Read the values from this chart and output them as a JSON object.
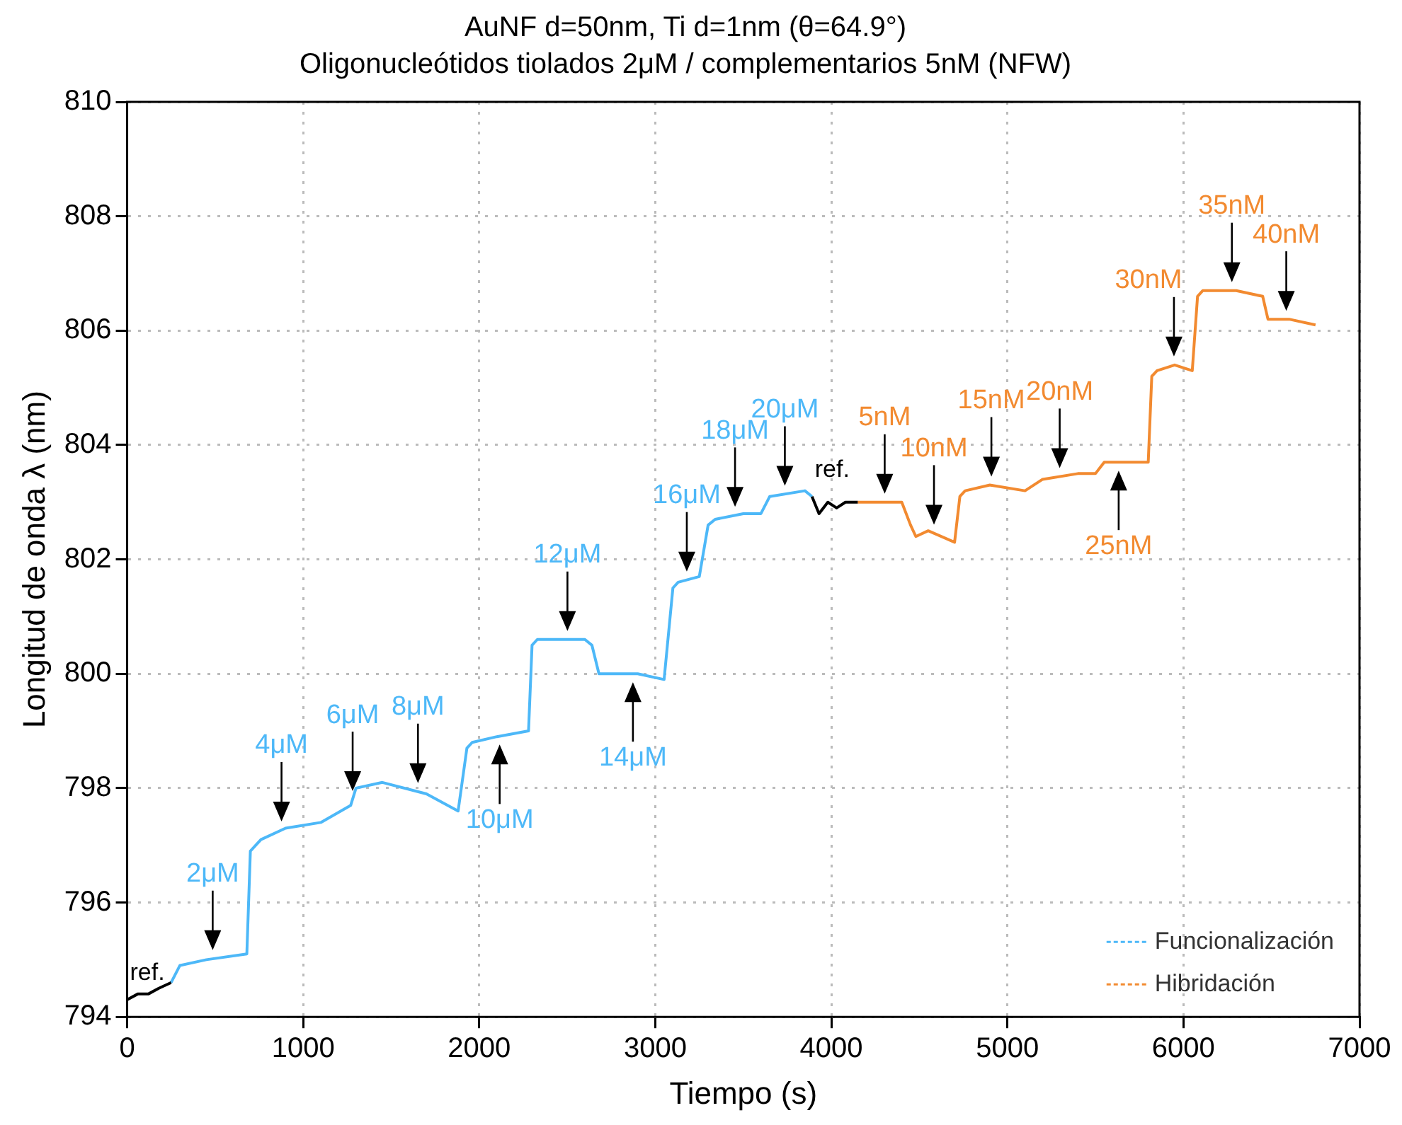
{
  "chart_data": {
    "type": "line",
    "title": "AuNF d=50nm, Ti d=1nm (θ=64.9°)",
    "subtitle": "Oligonucleótidos tiolados 2μM / complementarios 5nM (NFW)",
    "xlabel": "Tiempo (s)",
    "ylabel": "Longitud de onda λ (nm)",
    "xlim": [
      0,
      7000
    ],
    "xticks": [
      0,
      1000,
      2000,
      3000,
      4000,
      5000,
      6000,
      7000
    ],
    "ylim": [
      794,
      810
    ],
    "yticks": [
      794,
      796,
      798,
      800,
      802,
      804,
      806,
      808,
      810
    ],
    "grid": true,
    "legend": "bottom right",
    "line_style": "solid",
    "marker": "none",
    "series": [
      {
        "name": "ref.",
        "color": "#000000",
        "x": [
          0,
          60,
          120,
          180,
          250,
          255,
          3890,
          3930,
          3980,
          4030,
          4080,
          4150
        ],
        "values": [
          794.3,
          794.4,
          794.4,
          794.5,
          794.6,
          null,
          803.1,
          802.8,
          803.0,
          802.9,
          803.0,
          803.0
        ]
      },
      {
        "name": "Funcionalización",
        "color": "#4db8f8",
        "x": [
          250,
          300,
          450,
          680,
          700,
          760,
          900,
          1100,
          1270,
          1300,
          1450,
          1700,
          1880,
          1930,
          1960,
          2100,
          2280,
          2300,
          2330,
          2600,
          2640,
          2680,
          2900,
          3050,
          3100,
          3130,
          3250,
          3300,
          3340,
          3500,
          3600,
          3650,
          3850,
          3890
        ],
        "values": [
          794.6,
          794.9,
          795.0,
          795.1,
          796.9,
          797.1,
          797.3,
          797.4,
          797.7,
          798.0,
          798.1,
          797.9,
          797.6,
          798.7,
          798.8,
          798.9,
          799.0,
          800.5,
          800.6,
          800.6,
          800.5,
          800.0,
          800.0,
          799.9,
          801.5,
          801.6,
          801.7,
          802.6,
          802.7,
          802.8,
          802.8,
          803.1,
          803.2,
          803.1
        ]
      },
      {
        "name": "Hibridación",
        "color": "#f28a30",
        "x": [
          4150,
          4400,
          4450,
          4480,
          4550,
          4700,
          4730,
          4760,
          4900,
          5100,
          5200,
          5400,
          5500,
          5550,
          5800,
          5820,
          5850,
          5950,
          6050,
          6080,
          6110,
          6300,
          6450,
          6480,
          6600,
          6750
        ],
        "values": [
          803.0,
          803.0,
          802.6,
          802.4,
          802.5,
          802.3,
          803.1,
          803.2,
          803.3,
          803.2,
          803.4,
          803.5,
          803.5,
          803.7,
          803.7,
          805.2,
          805.3,
          805.4,
          805.3,
          806.6,
          806.7,
          806.7,
          806.6,
          806.2,
          806.2,
          806.1
        ]
      }
    ],
    "annotations": [
      {
        "text": "2μM",
        "x": 486,
        "y": 795.02
      },
      {
        "text": "4μM",
        "x": 877,
        "y": 797.27
      },
      {
        "text": "6μM",
        "x": 1281,
        "y": 797.8
      },
      {
        "text": "8μM",
        "x": 1652,
        "y": 797.94
      },
      {
        "text": "10μM",
        "x": 2116,
        "y": 798.91
      },
      {
        "text": "12μM",
        "x": 2501,
        "y": 800.6
      },
      {
        "text": "14μM",
        "x": 2873,
        "y": 800.0
      },
      {
        "text": "16μM",
        "x": 3179,
        "y": 801.64
      },
      {
        "text": "18μM",
        "x": 3453,
        "y": 802.77
      },
      {
        "text": "20μM",
        "x": 3736,
        "y": 803.14
      },
      {
        "text": "5nM",
        "x": 4303,
        "y": 803.0
      },
      {
        "text": "10nM",
        "x": 4583,
        "y": 802.46
      },
      {
        "text": "15nM",
        "x": 4909,
        "y": 803.3
      },
      {
        "text": "20nM",
        "x": 5297,
        "y": 803.45
      },
      {
        "text": "25nM",
        "x": 5632,
        "y": 803.7
      },
      {
        "text": "30nM",
        "x": 5946,
        "y": 805.4
      },
      {
        "text": "35nM",
        "x": 6275,
        "y": 806.7
      },
      {
        "text": "40nM",
        "x": 6584,
        "y": 806.2
      }
    ]
  }
}
